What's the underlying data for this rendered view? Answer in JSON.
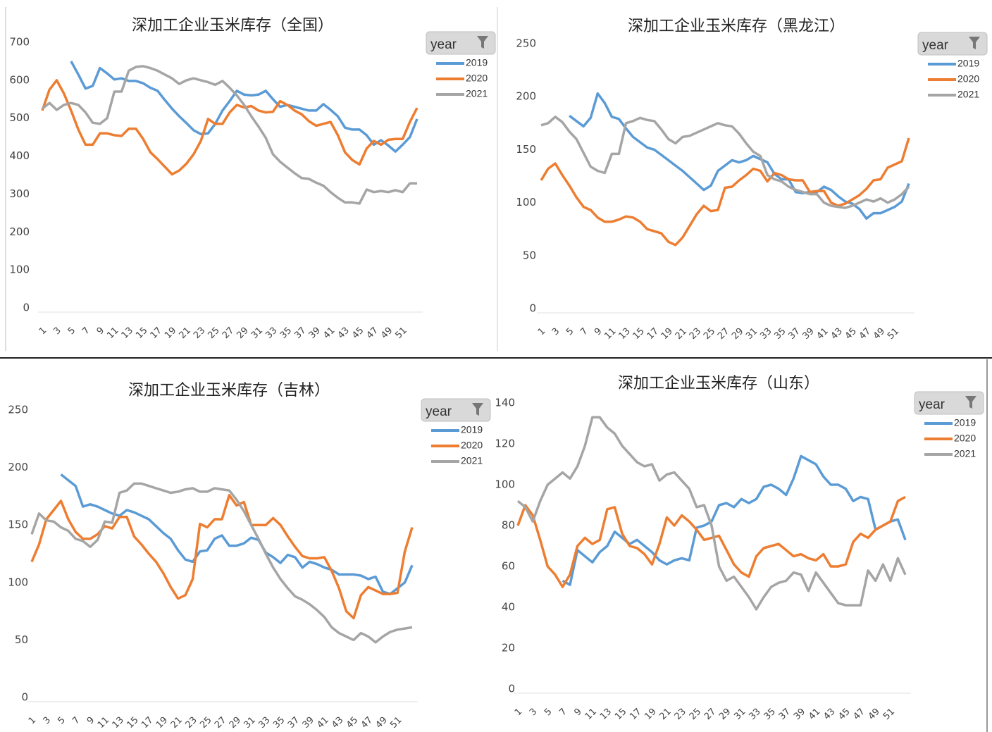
{
  "chart_data": [
    {
      "type": "line",
      "title": "深加工企业玉米库存（全国）",
      "legend_title": "year",
      "legend": "right",
      "grid": false,
      "categories": [
        "1",
        null,
        "3",
        null,
        "5",
        null,
        "7",
        null,
        "9",
        null,
        "11",
        null,
        "13",
        null,
        "15",
        null,
        "17",
        null,
        "19",
        null,
        "21",
        null,
        "23",
        null,
        "25",
        null,
        "27",
        null,
        "29",
        null,
        "31",
        null,
        "33",
        null,
        "35",
        null,
        "37",
        null,
        "39",
        null,
        "41",
        null,
        "43",
        null,
        "45",
        null,
        "47",
        null,
        "49",
        null,
        "51",
        null,
        null
      ],
      "ylim": [
        0,
        700
      ],
      "yticks": [
        0,
        100,
        200,
        300,
        400,
        500,
        600,
        700
      ],
      "series": [
        {
          "name": "2019",
          "color": "#5b9bd5",
          "values": [
            null,
            null,
            null,
            null,
            650,
            615,
            578,
            585,
            632,
            618,
            602,
            605,
            598,
            598,
            592,
            580,
            572,
            548,
            525,
            505,
            487,
            468,
            458,
            460,
            485,
            520,
            545,
            572,
            562,
            560,
            562,
            572,
            550,
            530,
            535,
            530,
            525,
            520,
            520,
            537,
            522,
            505,
            475,
            470,
            470,
            455,
            430,
            442,
            428,
            412,
            430,
            450,
            498
          ]
        },
        {
          "name": "2020",
          "color": "#ed7d31",
          "values": [
            520,
            575,
            600,
            565,
            520,
            470,
            430,
            430,
            460,
            460,
            455,
            453,
            472,
            472,
            445,
            410,
            392,
            372,
            352,
            362,
            380,
            405,
            440,
            498,
            485,
            485,
            515,
            535,
            528,
            532,
            520,
            515,
            517,
            545,
            535,
            520,
            510,
            492,
            480,
            485,
            490,
            455,
            410,
            390,
            378,
            420,
            440,
            430,
            443,
            445,
            445,
            490,
            527
          ]
        },
        {
          "name": "2021",
          "color": "#a5a5a5",
          "values": [
            525,
            540,
            522,
            535,
            540,
            535,
            515,
            488,
            485,
            500,
            570,
            570,
            625,
            635,
            637,
            632,
            625,
            615,
            605,
            590,
            600,
            605,
            600,
            595,
            588,
            598,
            580,
            560,
            535,
            505,
            478,
            448,
            405,
            385,
            370,
            355,
            342,
            340,
            330,
            322,
            305,
            290,
            278,
            278,
            275,
            312,
            305,
            308,
            305,
            310,
            305,
            328,
            328
          ]
        }
      ]
    },
    {
      "type": "line",
      "title": "深加工企业玉米库存（黑龙江）",
      "legend_title": "year",
      "legend": "right",
      "grid": false,
      "categories": [
        "1",
        null,
        "3",
        null,
        "5",
        null,
        "7",
        null,
        "9",
        null,
        "11",
        null,
        "13",
        null,
        "15",
        null,
        "17",
        null,
        "19",
        null,
        "21",
        null,
        "23",
        null,
        "25",
        null,
        "27",
        null,
        "29",
        null,
        "31",
        null,
        "33",
        null,
        "35",
        null,
        "37",
        null,
        "39",
        null,
        "41",
        null,
        "43",
        null,
        "45",
        null,
        "47",
        null,
        "49",
        null,
        "51",
        null,
        null
      ],
      "ylim": [
        0,
        250
      ],
      "yticks": [
        0,
        50,
        100,
        150,
        200,
        250
      ],
      "series": [
        {
          "name": "2019",
          "color": "#5b9bd5",
          "values": [
            null,
            null,
            null,
            null,
            182,
            177,
            172,
            180,
            203,
            194,
            181,
            179,
            170,
            162,
            157,
            152,
            150,
            145,
            140,
            135,
            130,
            124,
            118,
            112,
            116,
            130,
            135,
            140,
            138,
            140,
            144,
            141,
            138,
            127,
            122,
            122,
            110,
            109,
            110,
            110,
            115,
            112,
            106,
            101,
            99,
            94,
            85,
            90,
            90,
            93,
            96,
            101,
            118
          ]
        },
        {
          "name": "2020",
          "color": "#ed7d31",
          "values": [
            121,
            132,
            137,
            126,
            116,
            105,
            96,
            93,
            86,
            82,
            82,
            84,
            87,
            86,
            82,
            75,
            73,
            71,
            63,
            60,
            67,
            78,
            89,
            97,
            92,
            93,
            114,
            115,
            121,
            126,
            132,
            130,
            120,
            128,
            126,
            122,
            121,
            121,
            110,
            111,
            111,
            100,
            97,
            99,
            103,
            107,
            113,
            121,
            122,
            133,
            136,
            139,
            161
          ]
        },
        {
          "name": "2021",
          "color": "#a5a5a5",
          "values": [
            173,
            175,
            181,
            176,
            167,
            160,
            147,
            134,
            130,
            128,
            146,
            146,
            175,
            177,
            180,
            178,
            177,
            169,
            160,
            156,
            162,
            163,
            166,
            169,
            172,
            175,
            173,
            172,
            165,
            156,
            148,
            144,
            126,
            122,
            120,
            115,
            112,
            110,
            108,
            108,
            100,
            97,
            96,
            95,
            97,
            100,
            103,
            101,
            104,
            100,
            103,
            108,
            115
          ]
        }
      ]
    },
    {
      "type": "line",
      "title": "深加工企业玉米库存（吉林）",
      "legend_title": "year",
      "legend": "right",
      "grid": false,
      "categories": [
        "1",
        null,
        "3",
        null,
        "5",
        null,
        "7",
        null,
        "9",
        null,
        "11",
        null,
        "13",
        null,
        "15",
        null,
        "17",
        null,
        "19",
        null,
        "21",
        null,
        "23",
        null,
        "25",
        null,
        "27",
        null,
        "29",
        null,
        "31",
        null,
        "33",
        null,
        "35",
        null,
        "37",
        null,
        "39",
        null,
        "41",
        null,
        "43",
        null,
        "45",
        null,
        "47",
        null,
        "49",
        null,
        "51",
        null,
        null
      ],
      "ylim": [
        0,
        250
      ],
      "yticks": [
        0,
        50,
        100,
        150,
        200,
        250
      ],
      "series": [
        {
          "name": "2019",
          "color": "#5b9bd5",
          "values": [
            null,
            null,
            null,
            null,
            194,
            189,
            184,
            166,
            168,
            166,
            163,
            160,
            158,
            163,
            161,
            158,
            155,
            149,
            143,
            138,
            128,
            120,
            118,
            127,
            128,
            138,
            141,
            132,
            132,
            134,
            139,
            137,
            126,
            122,
            117,
            124,
            122,
            113,
            118,
            116,
            113,
            111,
            107,
            107,
            107,
            106,
            103,
            105,
            92,
            90,
            95,
            100,
            115
          ]
        },
        {
          "name": "2020",
          "color": "#ed7d31",
          "values": [
            118,
            133,
            155,
            163,
            171,
            155,
            144,
            138,
            138,
            142,
            149,
            147,
            157,
            157,
            140,
            133,
            125,
            118,
            108,
            96,
            86,
            89,
            103,
            151,
            148,
            155,
            155,
            176,
            167,
            170,
            150,
            150,
            150,
            156,
            150,
            140,
            131,
            123,
            121,
            121,
            122,
            110,
            95,
            75,
            69,
            89,
            96,
            93,
            90,
            90,
            91,
            127,
            148
          ]
        },
        {
          "name": "2021",
          "color": "#a5a5a5",
          "values": [
            142,
            160,
            154,
            153,
            148,
            145,
            138,
            136,
            131,
            137,
            153,
            152,
            178,
            180,
            186,
            186,
            184,
            182,
            180,
            178,
            179,
            181,
            182,
            179,
            179,
            182,
            181,
            180,
            172,
            162,
            150,
            138,
            125,
            113,
            103,
            95,
            88,
            85,
            81,
            76,
            70,
            61,
            56,
            53,
            50,
            56,
            53,
            48,
            53,
            57,
            59,
            60,
            61
          ]
        }
      ]
    },
    {
      "type": "line",
      "title": "深加工企业玉米库存（山东）",
      "legend_title": "year",
      "legend": "right",
      "grid": false,
      "categories": [
        "1",
        null,
        "3",
        null,
        "5",
        null,
        "7",
        null,
        "9",
        null,
        "11",
        null,
        "13",
        null,
        "15",
        null,
        "17",
        null,
        "19",
        null,
        "21",
        null,
        "23",
        null,
        "25",
        null,
        "27",
        null,
        "29",
        null,
        "31",
        null,
        "33",
        null,
        "35",
        null,
        "37",
        null,
        "39",
        null,
        "41",
        null,
        "43",
        null,
        "45",
        null,
        "47",
        null,
        "49",
        null,
        "51",
        null,
        null
      ],
      "ylim": [
        0,
        140
      ],
      "yticks": [
        0,
        20,
        40,
        60,
        80,
        100,
        120,
        140
      ],
      "series": [
        {
          "name": "2019",
          "color": "#5b9bd5",
          "values": [
            null,
            null,
            null,
            null,
            null,
            null,
            53,
            51,
            68,
            65,
            62,
            67,
            70,
            77,
            74,
            71,
            73,
            70,
            67,
            63,
            61,
            63,
            64,
            63,
            79,
            80,
            82,
            90,
            91,
            89,
            93,
            91,
            93,
            99,
            100,
            98,
            95,
            103,
            114,
            112,
            110,
            104,
            100,
            100,
            98,
            92,
            94,
            93,
            78,
            80,
            82,
            83,
            73
          ]
        },
        {
          "name": "2020",
          "color": "#ed7d31",
          "values": [
            80,
            90,
            85,
            73,
            60,
            56,
            50,
            56,
            70,
            74,
            71,
            73,
            88,
            89,
            76,
            70,
            69,
            66,
            61,
            71,
            84,
            80,
            85,
            82,
            78,
            73,
            74,
            75,
            68,
            61,
            57,
            55,
            65,
            69,
            70,
            71,
            68,
            65,
            66,
            64,
            63,
            66,
            60,
            60,
            61,
            72,
            76,
            74,
            78,
            80,
            82,
            92,
            94
          ]
        },
        {
          "name": "2021",
          "color": "#a5a5a5",
          "values": [
            92,
            89,
            82,
            92,
            100,
            103,
            106,
            103,
            109,
            119,
            133,
            133,
            128,
            125,
            119,
            115,
            111,
            109,
            110,
            102,
            105,
            106,
            102,
            98,
            89,
            90,
            80,
            60,
            53,
            55,
            50,
            45,
            39,
            45,
            50,
            52,
            53,
            57,
            56,
            48,
            57,
            52,
            47,
            42,
            41,
            41,
            41,
            58,
            53,
            61,
            53,
            64,
            56
          ]
        }
      ]
    }
  ]
}
